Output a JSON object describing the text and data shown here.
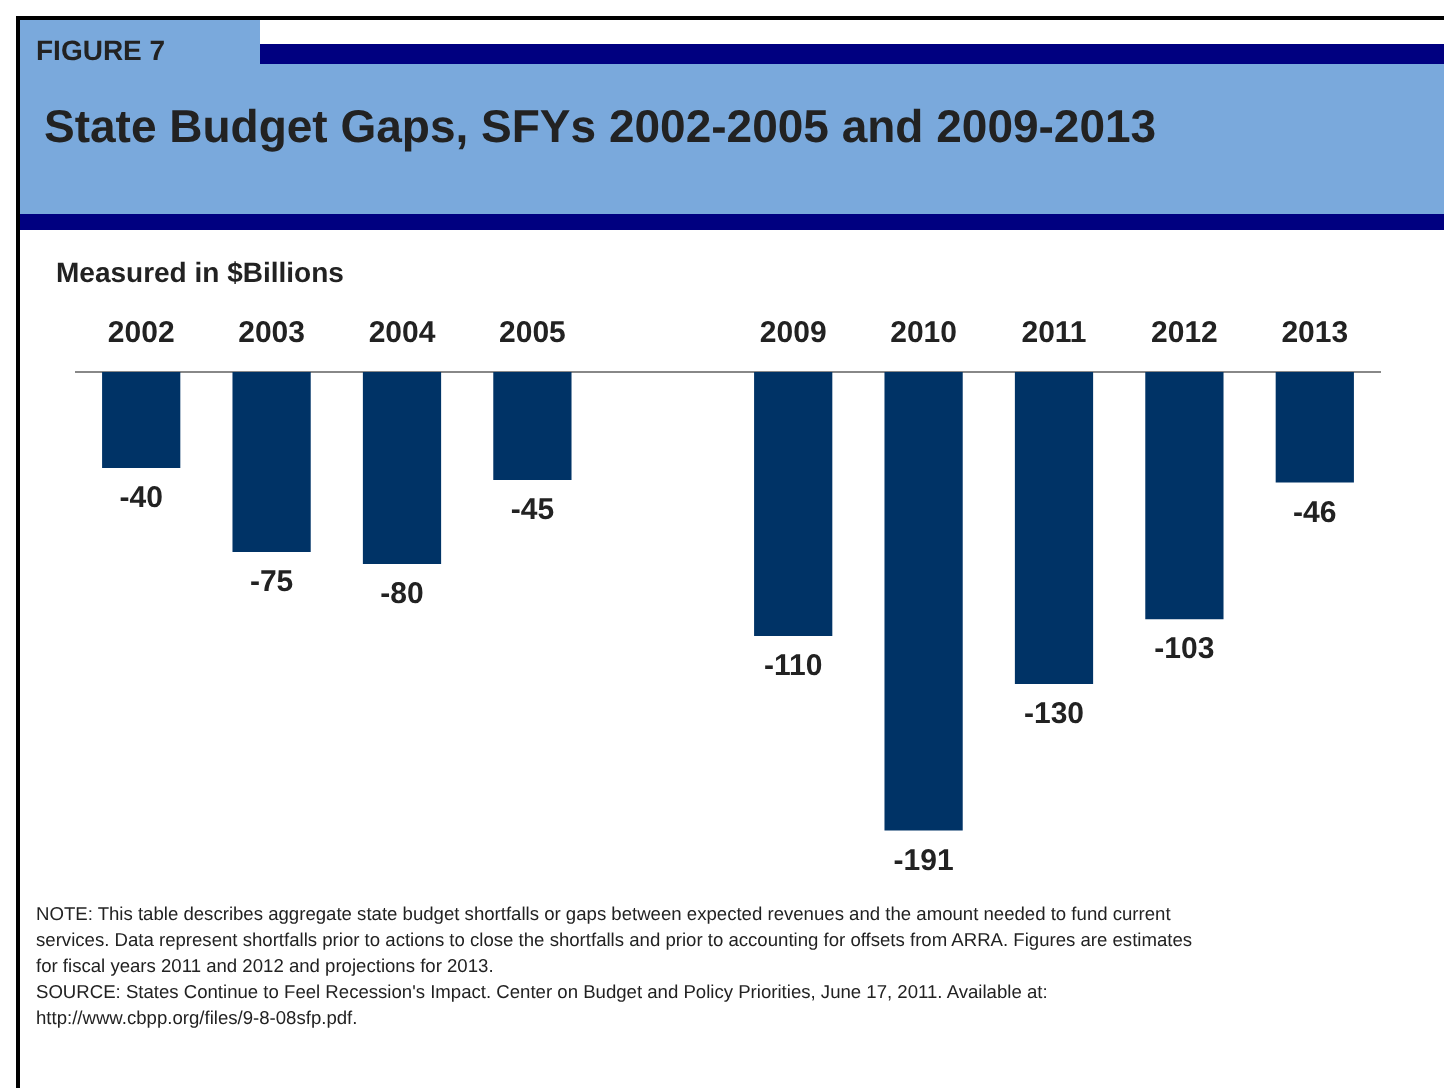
{
  "chart_data": {
    "type": "bar",
    "title": "State Budget Gaps, SFYs 2002-2005 and 2009-2013",
    "subtitle": "Measured in $Billions",
    "categories": [
      "2002",
      "2003",
      "2004",
      "2005",
      null,
      "2009",
      "2010",
      "2011",
      "2012",
      "2013"
    ],
    "values": [
      -40,
      -75,
      -80,
      -45,
      null,
      -110,
      -191,
      -130,
      -103,
      -46
    ],
    "color": "#003366",
    "data_labels": true,
    "tick_labels": "x",
    "grid": false,
    "legend": false,
    "annotations": [
      "FIGURE 7",
      "NOTE: This table describes aggregate state budget shortfalls or gaps between expected revenues and the amount needed to fund current services.  Data represent shortfalls prior to actions to close the shortfalls and prior to accounting for offsets from ARRA.  Figures are estimates for fiscal years 2011 and 2012 and projections for 2013.",
      "SOURCE: States Continue to Feel Recession's Impact. Center on Budget and Policy Priorities, June 17, 2011. Available at: http://www.cbpp.org/files/9-8-08sfp.pdf."
    ]
  }
}
